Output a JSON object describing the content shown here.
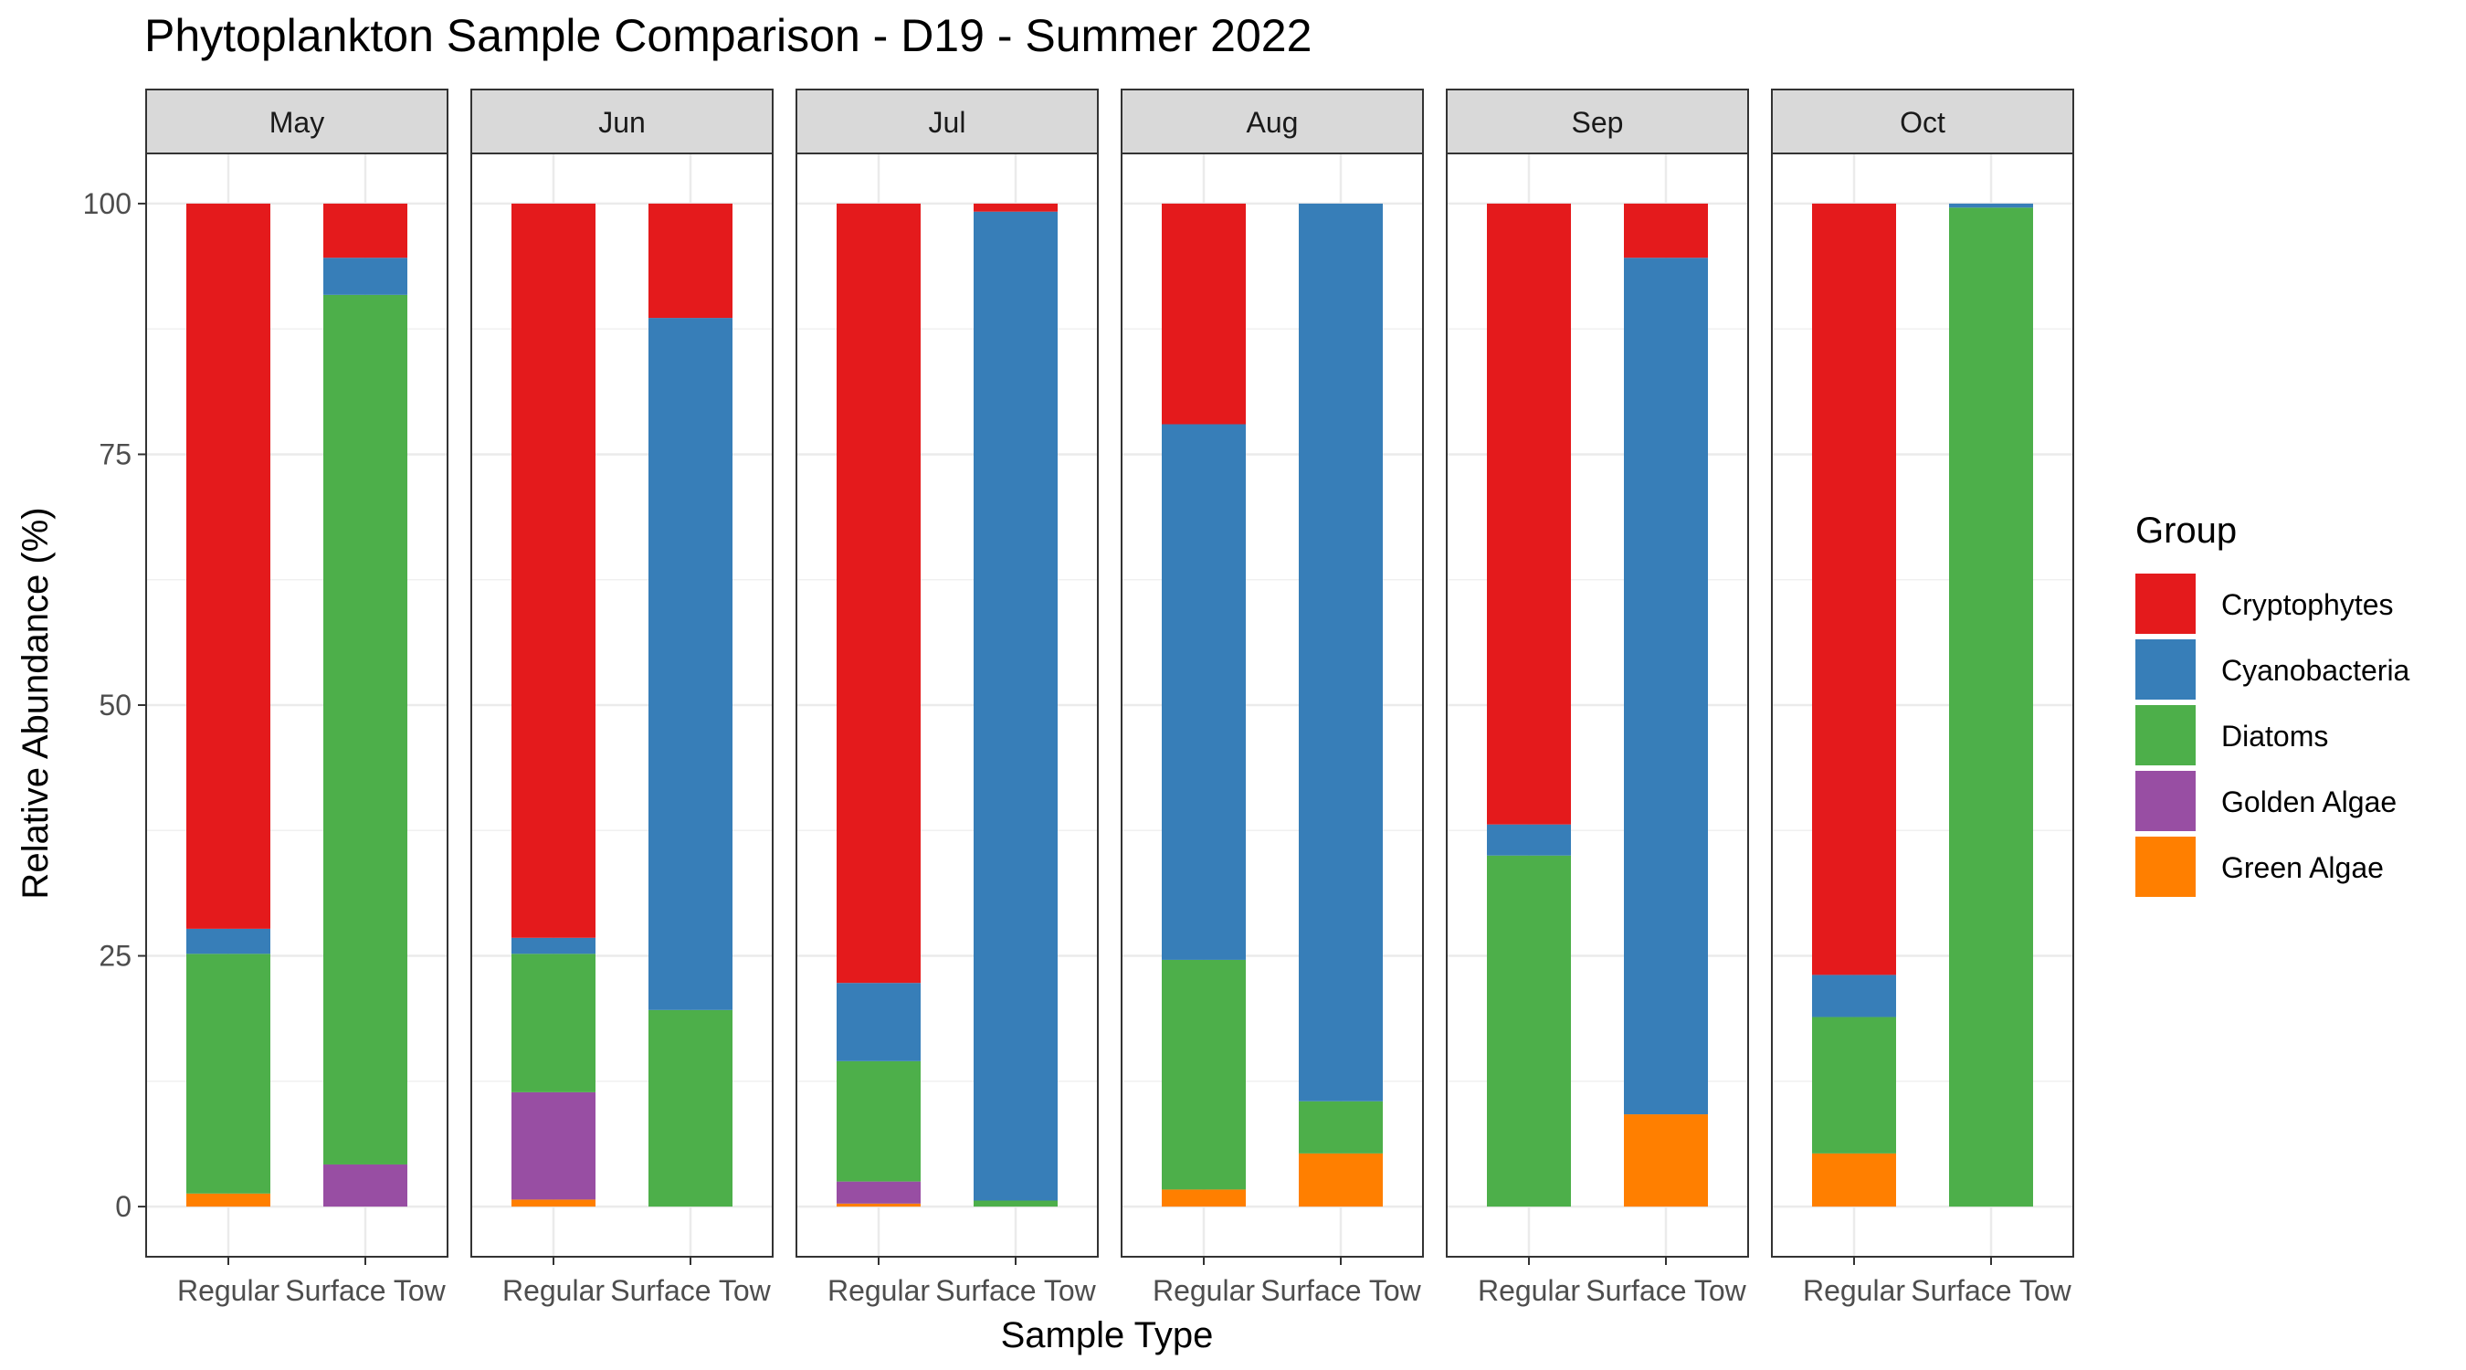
{
  "chart_data": {
    "type": "bar",
    "stacked": true,
    "title": "Phytoplankton Sample Comparison - D19 - Summer 2022",
    "xlabel": "Sample Type",
    "ylabel": "Relative Abundance (%)",
    "ylim": [
      -5,
      105
    ],
    "yticks": [
      0,
      25,
      50,
      75,
      100
    ],
    "grid": true,
    "legend_title": "Group",
    "legend_position": "right",
    "groups": [
      {
        "name": "Cryptophytes",
        "color": "#E41A1C"
      },
      {
        "name": "Cyanobacteria",
        "color": "#377EB8"
      },
      {
        "name": "Diatoms",
        "color": "#4DAF4A"
      },
      {
        "name": "Golden Algae",
        "color": "#984EA3"
      },
      {
        "name": "Green Algae",
        "color": "#FF7F00"
      }
    ],
    "categories": [
      "Regular",
      "Surface Tow"
    ],
    "panels": [
      {
        "label": "May",
        "bars": [
          {
            "category": "Regular",
            "values": {
              "Green Algae": 1.3,
              "Golden Algae": 0,
              "Diatoms": 23.9,
              "Cyanobacteria": 2.5,
              "Cryptophytes": 72.3
            }
          },
          {
            "category": "Surface Tow",
            "values": {
              "Green Algae": 0,
              "Golden Algae": 4.2,
              "Diatoms": 86.7,
              "Cyanobacteria": 3.7,
              "Cryptophytes": 5.4
            }
          }
        ]
      },
      {
        "label": "Jun",
        "bars": [
          {
            "category": "Regular",
            "values": {
              "Green Algae": 0.7,
              "Golden Algae": 10.7,
              "Diatoms": 13.8,
              "Cyanobacteria": 1.6,
              "Cryptophytes": 73.2
            }
          },
          {
            "category": "Surface Tow",
            "values": {
              "Green Algae": 0,
              "Golden Algae": 0,
              "Diatoms": 19.6,
              "Cyanobacteria": 69.0,
              "Cryptophytes": 11.4
            }
          }
        ]
      },
      {
        "label": "Jul",
        "bars": [
          {
            "category": "Regular",
            "values": {
              "Green Algae": 0.3,
              "Golden Algae": 2.2,
              "Diatoms": 12.0,
              "Cyanobacteria": 7.8,
              "Cryptophytes": 77.7
            }
          },
          {
            "category": "Surface Tow",
            "values": {
              "Green Algae": 0,
              "Golden Algae": 0,
              "Diatoms": 0.6,
              "Cyanobacteria": 98.6,
              "Cryptophytes": 0.8
            }
          }
        ]
      },
      {
        "label": "Aug",
        "bars": [
          {
            "category": "Regular",
            "values": {
              "Green Algae": 1.7,
              "Golden Algae": 0,
              "Diatoms": 22.9,
              "Cyanobacteria": 53.4,
              "Cryptophytes": 22.0
            }
          },
          {
            "category": "Surface Tow",
            "values": {
              "Green Algae": 5.3,
              "Golden Algae": 0,
              "Diatoms": 5.2,
              "Cyanobacteria": 89.5,
              "Cryptophytes": 0
            }
          }
        ]
      },
      {
        "label": "Sep",
        "bars": [
          {
            "category": "Regular",
            "values": {
              "Green Algae": 0,
              "Golden Algae": 0,
              "Diatoms": 35.0,
              "Cyanobacteria": 3.1,
              "Cryptophytes": 61.9
            }
          },
          {
            "category": "Surface Tow",
            "values": {
              "Green Algae": 9.2,
              "Golden Algae": 0,
              "Diatoms": 0,
              "Cyanobacteria": 85.4,
              "Cryptophytes": 5.4
            }
          }
        ]
      },
      {
        "label": "Oct",
        "bars": [
          {
            "category": "Regular",
            "values": {
              "Green Algae": 5.3,
              "Golden Algae": 0,
              "Diatoms": 13.6,
              "Cyanobacteria": 4.2,
              "Cryptophytes": 76.9
            }
          },
          {
            "category": "Surface Tow",
            "values": {
              "Green Algae": 0,
              "Golden Algae": 0,
              "Diatoms": 99.6,
              "Cyanobacteria": 0.4,
              "Cryptophytes": 0
            }
          }
        ]
      }
    ],
    "stack_order_bottom_to_top": [
      "Green Algae",
      "Golden Algae",
      "Diatoms",
      "Cyanobacteria",
      "Cryptophytes"
    ]
  }
}
